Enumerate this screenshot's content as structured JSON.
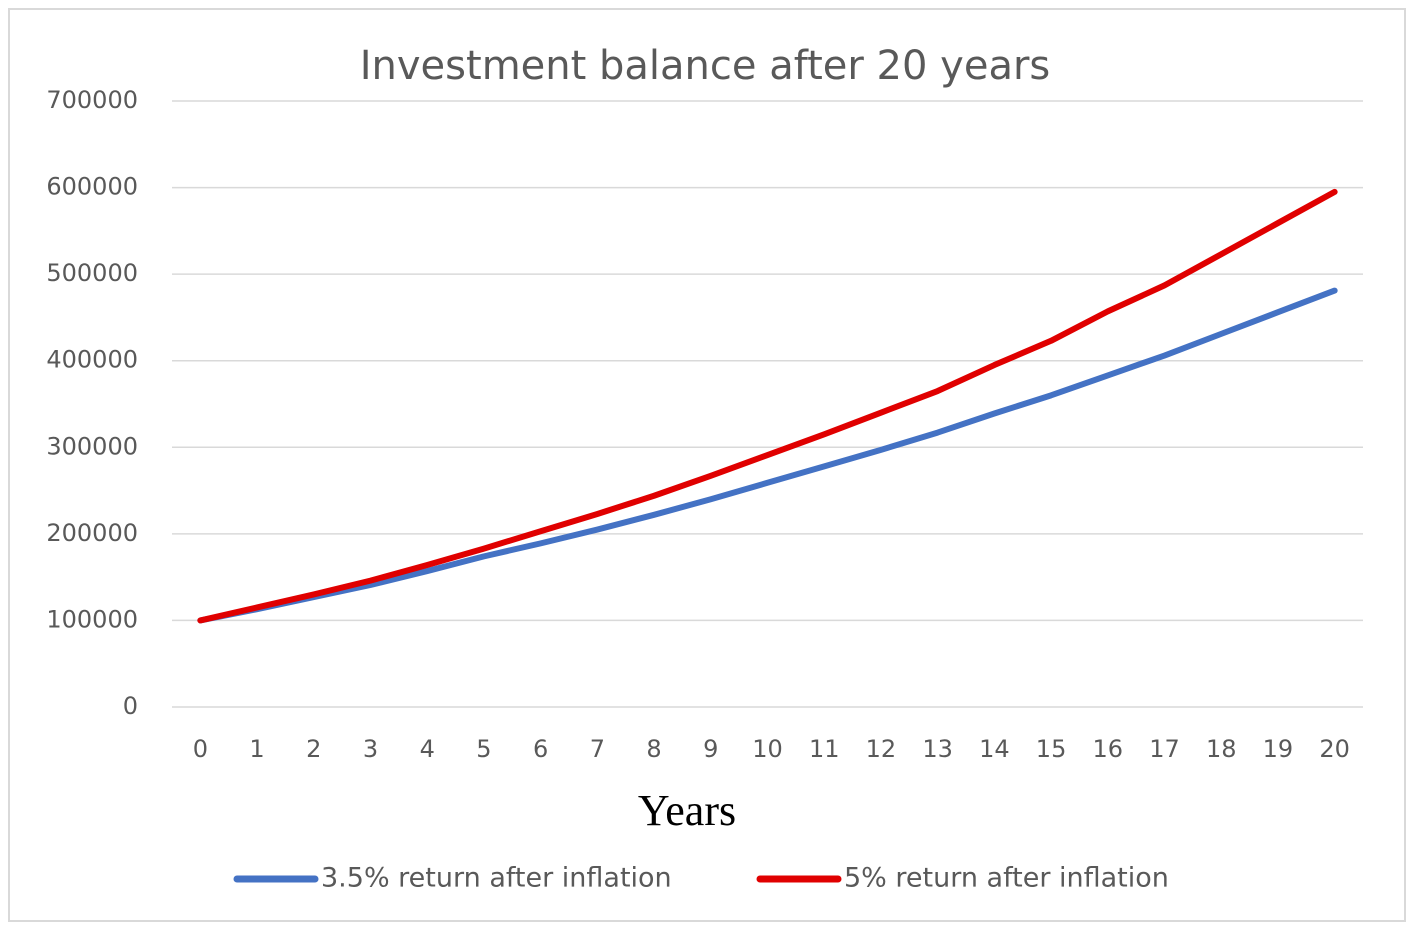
{
  "chart_data": {
    "type": "line",
    "title": "Investment balance after 20 years",
    "x_label": "Years",
    "categories": [
      "0",
      "1",
      "2",
      "3",
      "4",
      "5",
      "6",
      "7",
      "8",
      "9",
      "10",
      "11",
      "12",
      "13",
      "14",
      "15",
      "16",
      "17",
      "18",
      "19",
      "20"
    ],
    "series": [
      {
        "name": "3.5% return after inflation",
        "color": "#4472c4",
        "values": [
          100000,
          113000,
          127000,
          141000,
          157000,
          174000,
          189000,
          205000,
          222000,
          240000,
          259000,
          278000,
          297000,
          317000,
          339000,
          360000,
          383000,
          406000,
          431000,
          456000,
          481000
        ]
      },
      {
        "name": "5% return after inflation",
        "color": "#e00000",
        "values": [
          100000,
          115000,
          130000,
          146000,
          164000,
          183000,
          203000,
          223000,
          244000,
          267000,
          291000,
          315000,
          340000,
          365000,
          395000,
          423000,
          457000,
          487000,
          523000,
          559000,
          595000
        ]
      }
    ],
    "ylim": [
      0,
      700000
    ],
    "yticks": [
      0,
      100000,
      200000,
      300000,
      400000,
      500000,
      600000,
      700000
    ],
    "grid": true,
    "legend": "bottom"
  }
}
